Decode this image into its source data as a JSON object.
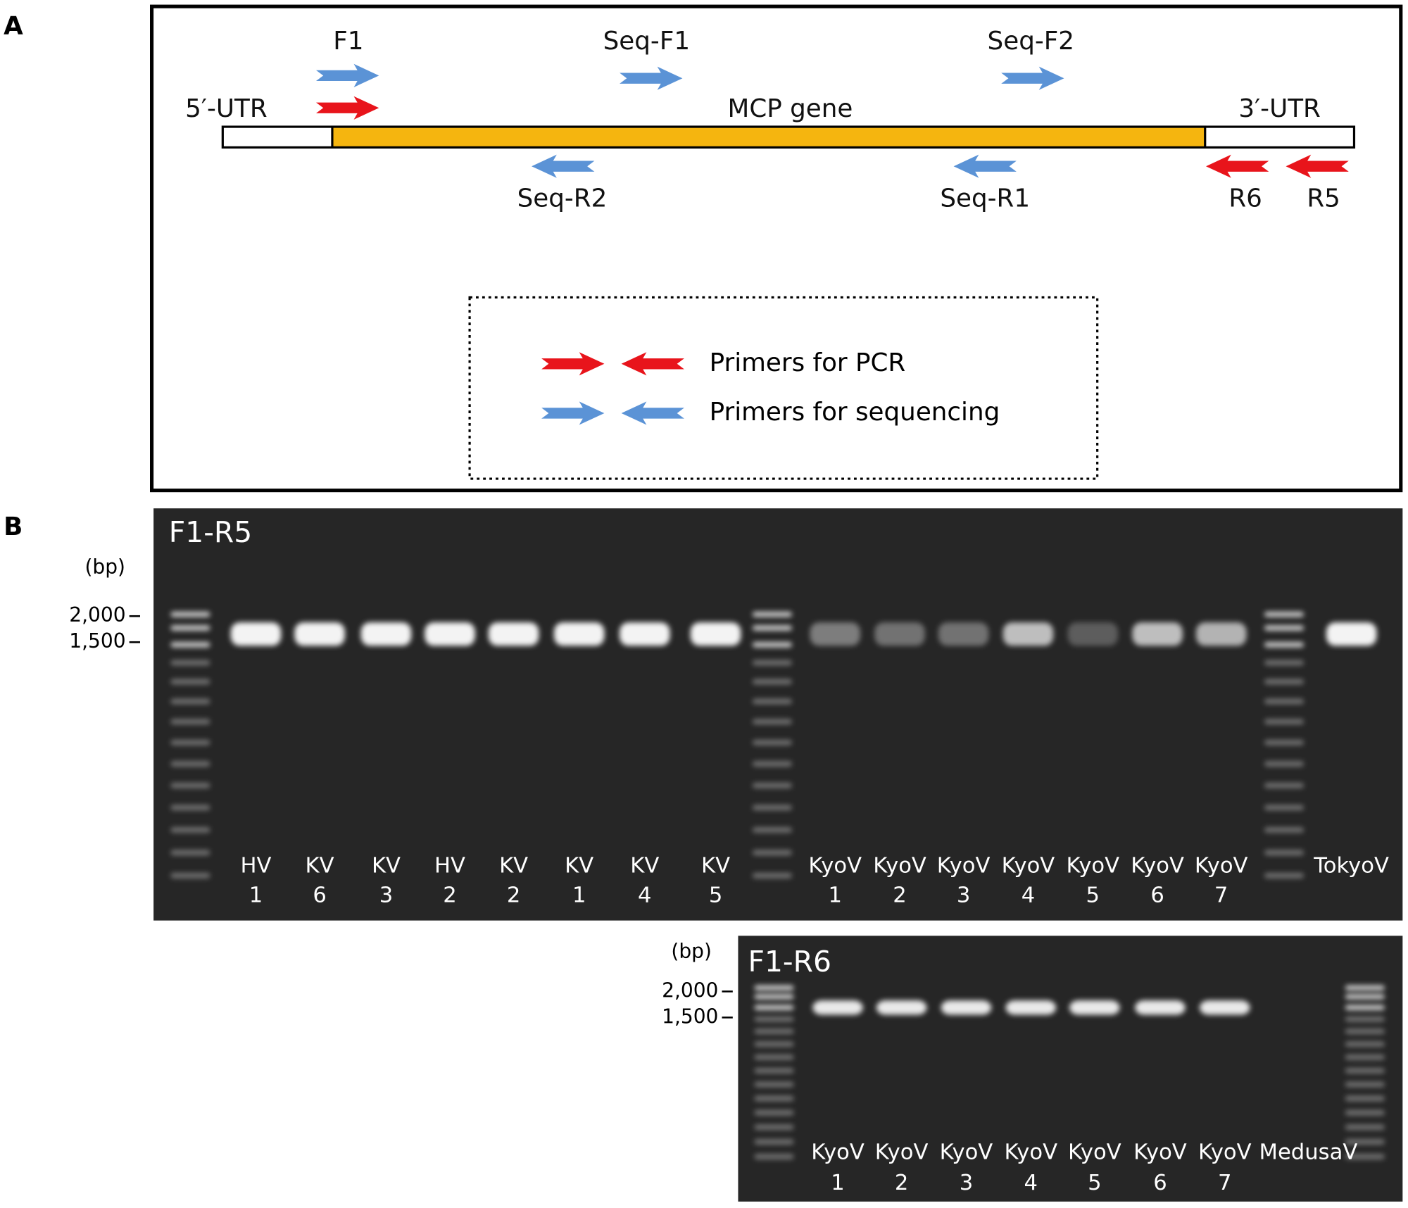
{
  "panel_a": {
    "letter": "A",
    "gene": {
      "utr5": "5′-UTR",
      "cds": "MCP gene",
      "utr3": "3′-UTR"
    },
    "primers": {
      "f1": "F1",
      "seq_f1": "Seq-F1",
      "seq_f2": "Seq-F2",
      "seq_r2": "Seq-R2",
      "seq_r1": "Seq-R1",
      "r6": "R6",
      "r5": "R5"
    },
    "legend": {
      "pcr": "Primers for PCR",
      "sequencing": "Primers for sequencing"
    }
  },
  "panel_b": {
    "letter": "B",
    "gels": [
      {
        "title": "F1-R5",
        "unit": "(bp)",
        "markers": [
          "2,000",
          "1,500"
        ],
        "lanes": [
          {
            "name": "HV",
            "number": "1"
          },
          {
            "name": "KV",
            "number": "6"
          },
          {
            "name": "KV",
            "number": "3"
          },
          {
            "name": "HV",
            "number": "2"
          },
          {
            "name": "KV",
            "number": "2"
          },
          {
            "name": "KV",
            "number": "1"
          },
          {
            "name": "KV",
            "number": "4"
          },
          {
            "name": "KV",
            "number": "5"
          },
          {
            "name": "KyoV",
            "number": "1"
          },
          {
            "name": "KyoV",
            "number": "2"
          },
          {
            "name": "KyoV",
            "number": "3"
          },
          {
            "name": "KyoV",
            "number": "4"
          },
          {
            "name": "KyoV",
            "number": "5"
          },
          {
            "name": "KyoV",
            "number": "6"
          },
          {
            "name": "KyoV",
            "number": "7"
          },
          {
            "name": "TokyoV"
          }
        ]
      },
      {
        "title": "F1-R6",
        "unit": "(bp)",
        "markers": [
          "2,000",
          "1,500"
        ],
        "lanes": [
          {
            "name": "KyoV",
            "number": "1"
          },
          {
            "name": "KyoV",
            "number": "2"
          },
          {
            "name": "KyoV",
            "number": "3"
          },
          {
            "name": "KyoV",
            "number": "4"
          },
          {
            "name": "KyoV",
            "number": "5"
          },
          {
            "name": "KyoV",
            "number": "6"
          },
          {
            "name": "KyoV",
            "number": "7"
          },
          {
            "name": "MedusaV"
          }
        ]
      }
    ]
  }
}
